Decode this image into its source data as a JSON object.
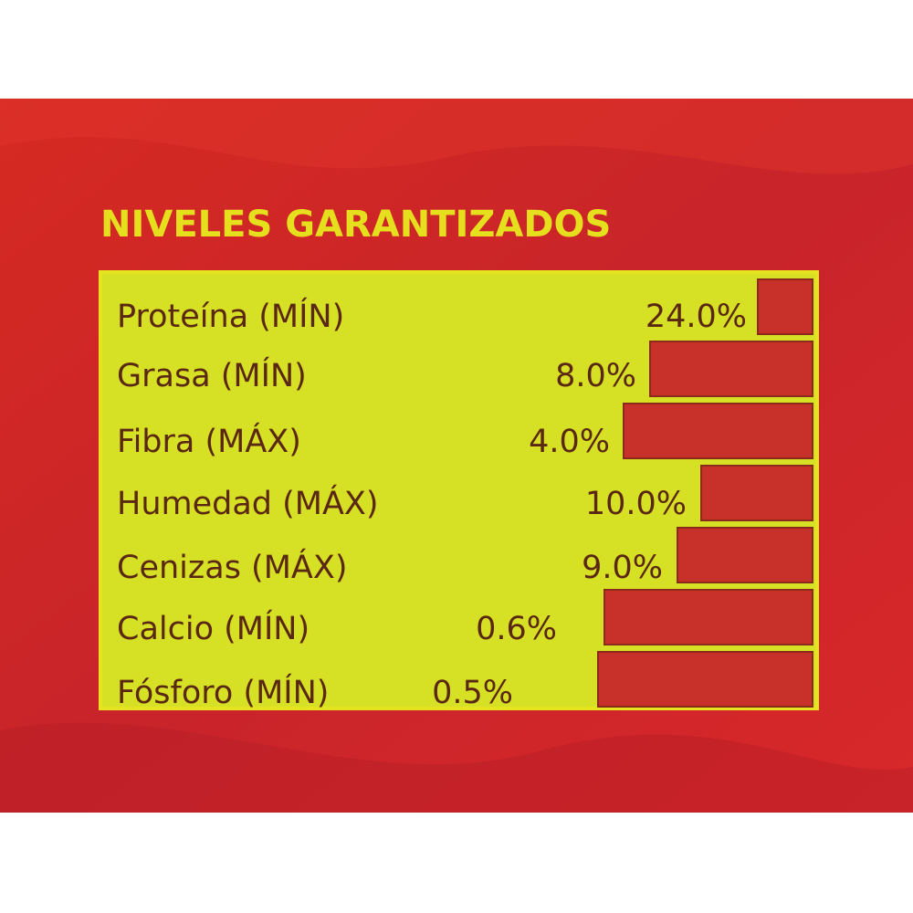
{
  "header": {
    "title": "NIVELES GARANTIZADOS"
  },
  "table": {
    "rows": [
      [
        "Proteína (MÍN)",
        "24.0%"
      ],
      [
        "Grasa (MÍN)",
        "8.0%"
      ],
      [
        "Fibra (MÁX)",
        "4.0%"
      ],
      [
        "Humedad (MÁX)",
        "10.0%"
      ],
      [
        "Cenizas (MÁX)",
        "9.0%"
      ],
      [
        "Calcio (MÍN)",
        "0.6%"
      ],
      [
        "Fósforo (MÍN)",
        "0.5%"
      ]
    ]
  }
}
